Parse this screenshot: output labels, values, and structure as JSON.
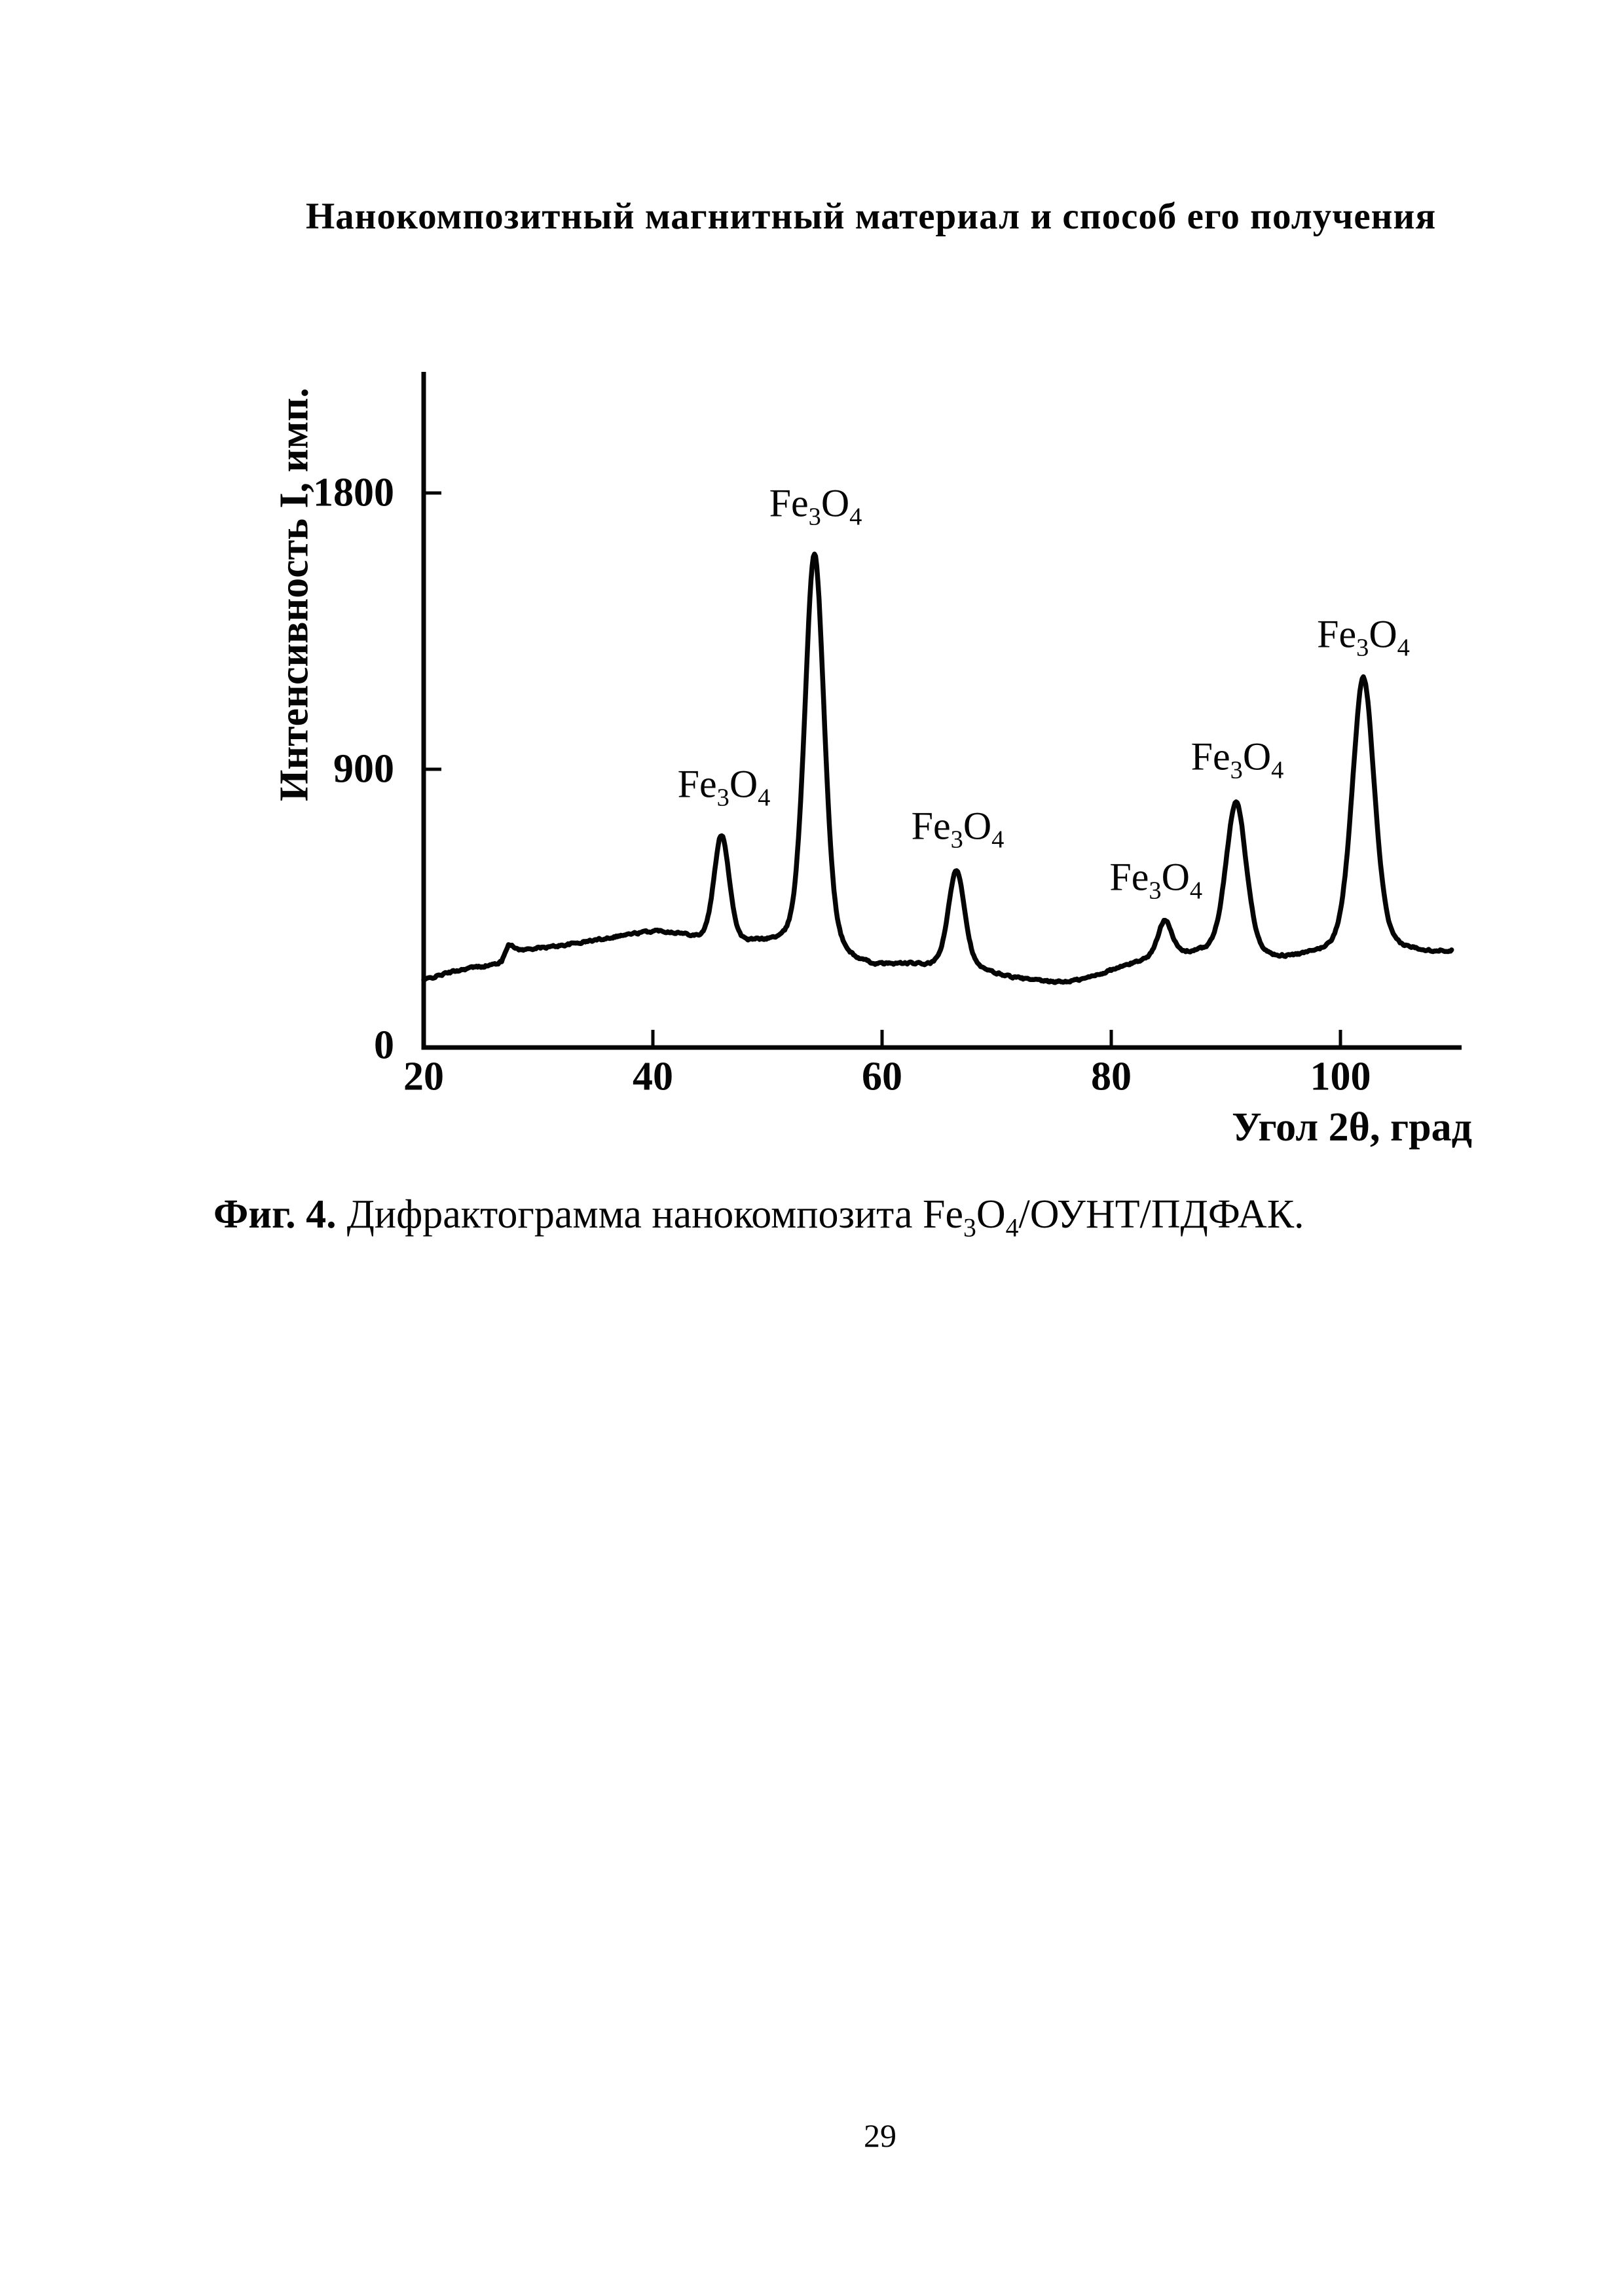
{
  "document": {
    "title": "Нанокомпозитный магнитный материал и способ его получения",
    "figure_caption": {
      "lead": "Фиг. 4.",
      "text": "Дифрактограмма нанокомпозита Fe{3}O{4}/ОУНТ/ПДФАК."
    },
    "page_number": "29"
  },
  "chart_data": {
    "type": "line",
    "title": "",
    "xlabel": "Угол 2θ, град",
    "ylabel": "Интенсивность I, имп.",
    "xlim": [
      20,
      110
    ],
    "ylim": [
      0,
      2190
    ],
    "xticks": [
      20,
      40,
      60,
      80,
      100
    ],
    "yticks": [
      0,
      900,
      1800
    ],
    "grid": false,
    "legend": false,
    "line_color": "#050505",
    "series_name": "Дифрактограмма Fe3O4/ОУНТ/ПДФАК",
    "baseline_points": [
      [
        20,
        213
      ],
      [
        21,
        224
      ],
      [
        22,
        235
      ],
      [
        23,
        244
      ],
      [
        24,
        252
      ],
      [
        25,
        257
      ],
      [
        26,
        262
      ],
      [
        26.8,
        272
      ],
      [
        27.4,
        332
      ],
      [
        27.9,
        318
      ],
      [
        28.6,
        310
      ],
      [
        29.5,
        315
      ],
      [
        31,
        320
      ],
      [
        33,
        330
      ],
      [
        35,
        342
      ],
      [
        37,
        355
      ],
      [
        39,
        365
      ],
      [
        40.5,
        370
      ],
      [
        42,
        362
      ],
      [
        43.5,
        348
      ],
      [
        44.8,
        326
      ],
      [
        46,
        318
      ],
      [
        47.5,
        318
      ],
      [
        49,
        325
      ],
      [
        50.5,
        322
      ],
      [
        52,
        310
      ],
      [
        53.5,
        300
      ],
      [
        55,
        292
      ],
      [
        56.5,
        275
      ],
      [
        58,
        258
      ],
      [
        59.5,
        252
      ],
      [
        61,
        257
      ],
      [
        62.5,
        258
      ],
      [
        64,
        252
      ],
      [
        65.5,
        248
      ],
      [
        67,
        245
      ],
      [
        68.5,
        238
      ],
      [
        70,
        228
      ],
      [
        71.5,
        218
      ],
      [
        73,
        210
      ],
      [
        74.5,
        205
      ],
      [
        76,
        205
      ],
      [
        77.5,
        213
      ],
      [
        79,
        230
      ],
      [
        80.5,
        248
      ],
      [
        82,
        265
      ],
      [
        83.5,
        280
      ],
      [
        84.7,
        285
      ],
      [
        86,
        290
      ],
      [
        87.5,
        296
      ],
      [
        89,
        295
      ],
      [
        90.9,
        290
      ],
      [
        92.5,
        284
      ],
      [
        94,
        277
      ],
      [
        95.5,
        278
      ],
      [
        97,
        285
      ],
      [
        98.5,
        292
      ],
      [
        100,
        295
      ],
      [
        101,
        296
      ],
      [
        102,
        297
      ],
      [
        103.5,
        298
      ],
      [
        105,
        300
      ],
      [
        106.5,
        302
      ],
      [
        108,
        300
      ],
      [
        109.7,
        304
      ]
    ],
    "peaks": [
      {
        "center": 46.0,
        "peak_intensity": 680,
        "amplitude": 362,
        "hwhm": 0.8,
        "label": "Fe{3}O{4}",
        "label_anchor": [
          46.2,
          850
        ]
      },
      {
        "center": 54.1,
        "peak_intensity": 1602,
        "amplitude": 1305,
        "hwhm": 1.0,
        "label": "Fe{3}O{4}",
        "label_anchor": [
          54.2,
          1765
        ]
      },
      {
        "center": 66.5,
        "peak_intensity": 570,
        "amplitude": 322,
        "hwhm": 0.85,
        "label": "Fe{3}O{4}",
        "label_anchor": [
          66.6,
          715
        ]
      },
      {
        "center": 84.7,
        "peak_intensity": 405,
        "amplitude": 120,
        "hwhm": 0.7,
        "label": "Fe{3}O{4}",
        "label_anchor": [
          83.9,
          548
        ]
      },
      {
        "center": 90.9,
        "peak_intensity": 790,
        "amplitude": 500,
        "hwhm": 1.05,
        "label": "Fe{3}O{4}",
        "label_anchor": [
          91.0,
          940
        ]
      },
      {
        "center": 102.0,
        "peak_intensity": 1195,
        "amplitude": 898,
        "hwhm": 1.15,
        "label": "Fe{3}O{4}",
        "label_anchor": [
          102.0,
          1340
        ]
      }
    ],
    "noise_amplitude": 6
  }
}
